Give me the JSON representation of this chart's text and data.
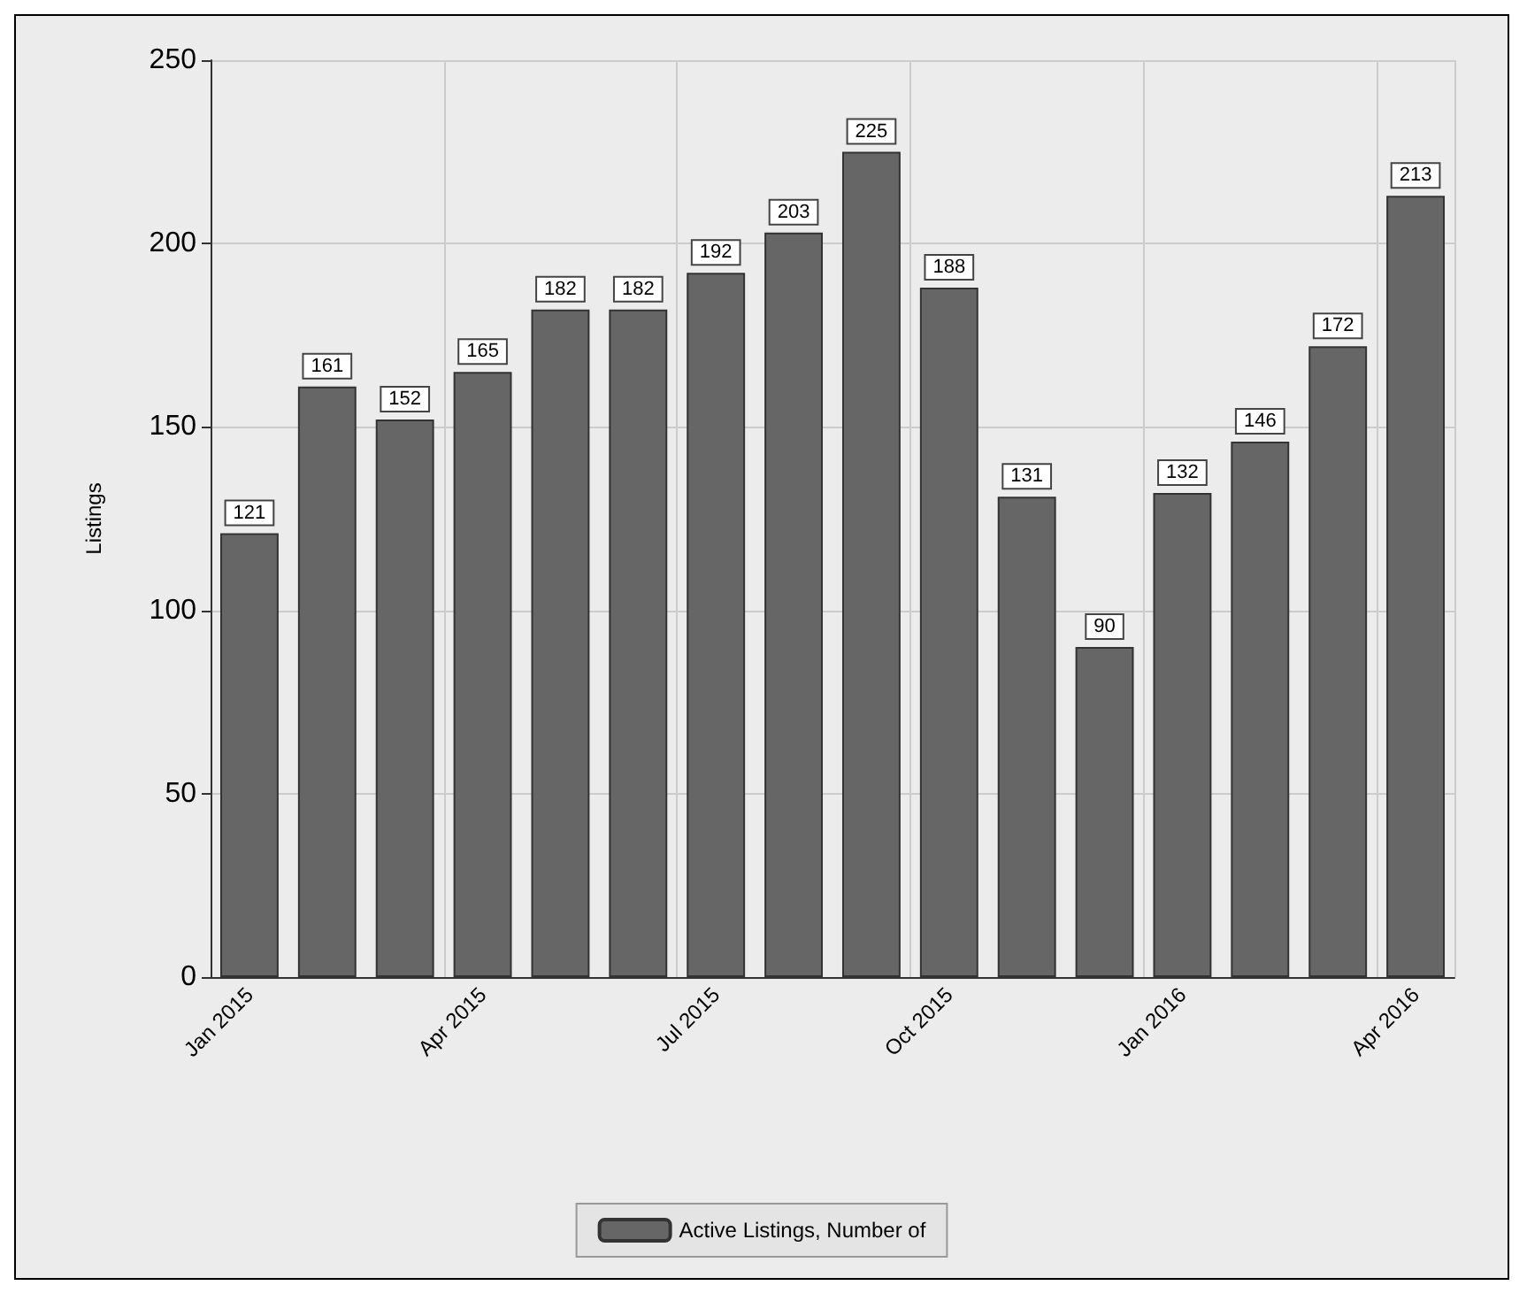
{
  "chart_data": {
    "type": "bar",
    "ylabel": "Listings",
    "categories": [
      "Jan 2015",
      null,
      null,
      "Apr 2015",
      null,
      null,
      "Jul 2015",
      null,
      null,
      "Oct 2015",
      null,
      null,
      "Jan 2016",
      null,
      null,
      "Apr 2016"
    ],
    "series": [
      {
        "name": "Active Listings, Number of",
        "color": "#666666",
        "values": [
          121,
          161,
          152,
          165,
          182,
          182,
          192,
          203,
          225,
          188,
          131,
          90,
          132,
          146,
          172,
          213
        ]
      }
    ],
    "ylim": [
      0,
      250
    ],
    "yticks": [
      0,
      50,
      100,
      150,
      200,
      250
    ],
    "grid": true,
    "legend": "bottom",
    "data_labels": true
  }
}
